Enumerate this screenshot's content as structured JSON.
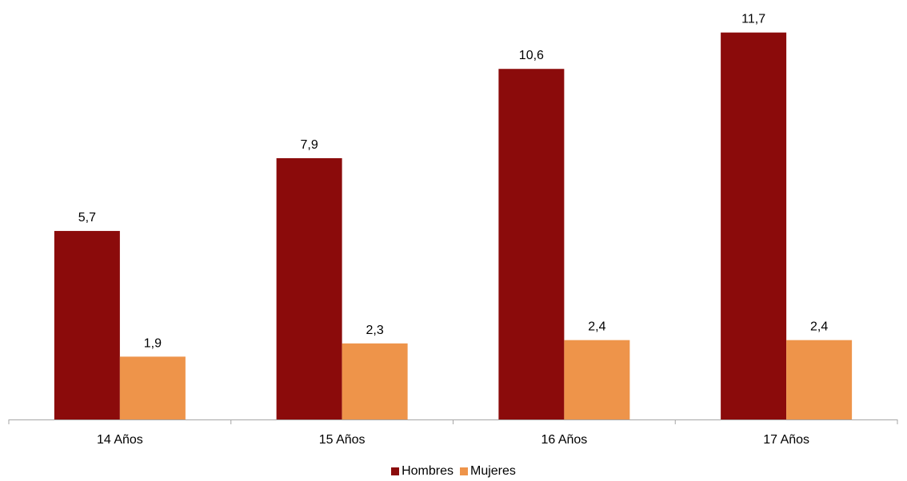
{
  "chart_data": {
    "type": "bar",
    "categories": [
      "14 Años",
      "15 Años",
      "16 Años",
      "17 Años"
    ],
    "series": [
      {
        "name": "Hombres",
        "values": [
          5.7,
          7.9,
          10.6,
          11.7
        ],
        "labels": [
          "5,7",
          "7,9",
          "10,6",
          "11,7"
        ],
        "color": "#8B0B0B"
      },
      {
        "name": "Mujeres",
        "values": [
          1.9,
          2.3,
          2.4,
          2.4
        ],
        "labels": [
          "1,9",
          "2,3",
          "2,4",
          "2,4"
        ],
        "color": "#EE944A"
      }
    ],
    "ylim": [
      0,
      12.2
    ],
    "grid": false,
    "legend_position": "bottom"
  }
}
